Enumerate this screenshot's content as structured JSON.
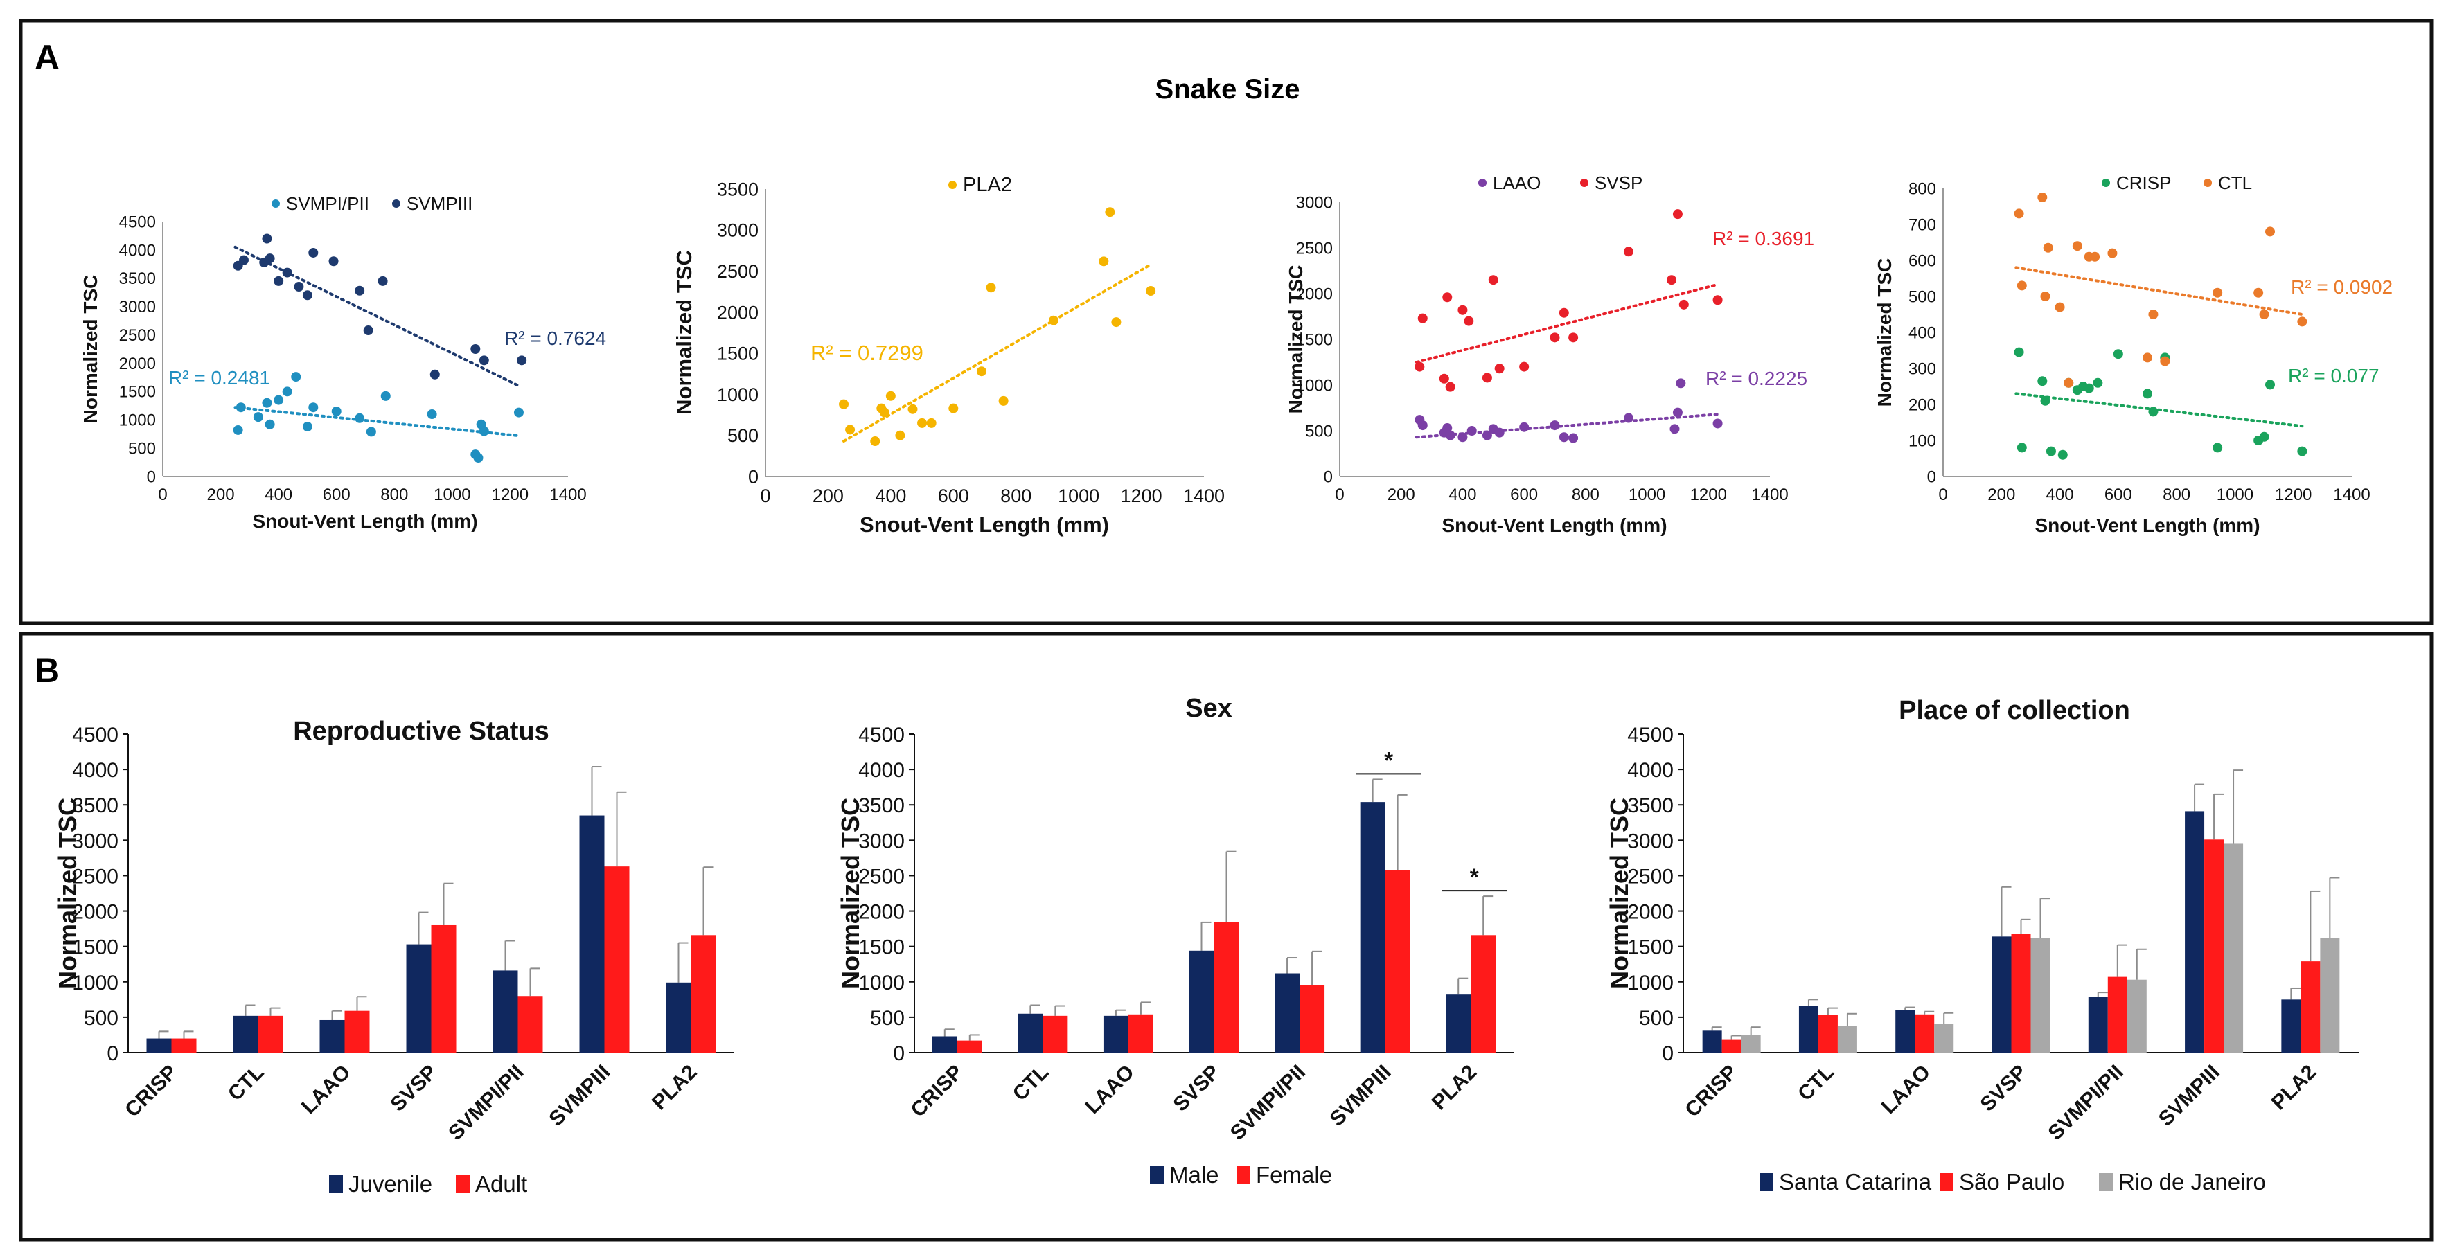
{
  "panel_a": {
    "letter": "A",
    "title": "Snake Size"
  },
  "panel_b": {
    "letter": "B"
  },
  "colors": {
    "svmpi": "#1f8fc0",
    "svmpiii": "#1e3a6e",
    "pla2": "#f5b400",
    "laao": "#7b3fa5",
    "svsp": "#e8202a",
    "crisp": "#1aa35c",
    "ctl": "#ea7a2a",
    "juvenile": "#10285f",
    "adult": "#ff1a1a",
    "male": "#10285f",
    "female": "#ff1a1a",
    "santa_catarina": "#10285f",
    "sao_paulo": "#ff1a1a",
    "rio_de_janeiro": "#a8a8a8",
    "error_bar": "#8c8c8c"
  },
  "chart_data": [
    {
      "id": "scatter1",
      "type": "scatter",
      "xlabel": "Snout-Vent Length (mm)",
      "ylabel": "Normalized TSC",
      "xlim": [
        0,
        1400
      ],
      "ylim": [
        0,
        4500
      ],
      "xticks": [
        "0",
        "200",
        "400",
        "600",
        "800",
        "1000",
        "1200",
        "1400"
      ],
      "yticks": [
        "0",
        "500",
        "1000",
        "1500",
        "2000",
        "2500",
        "3000",
        "3500",
        "4000",
        "4500"
      ],
      "series": [
        {
          "name": "SVMPI/PII",
          "color_key": "svmpi",
          "r2": "R² = 0.2481",
          "trend": [
            [
              250,
              1220
            ],
            [
              1230,
              720
            ]
          ],
          "points": [
            [
              260,
              820
            ],
            [
              270,
              1220
            ],
            [
              330,
              1050
            ],
            [
              360,
              1300
            ],
            [
              370,
              920
            ],
            [
              400,
              1350
            ],
            [
              430,
              1500
            ],
            [
              460,
              1760
            ],
            [
              500,
              880
            ],
            [
              520,
              1220
            ],
            [
              600,
              1150
            ],
            [
              680,
              1030
            ],
            [
              720,
              790
            ],
            [
              770,
              1420
            ],
            [
              930,
              1100
            ],
            [
              1080,
              390
            ],
            [
              1090,
              330
            ],
            [
              1100,
              920
            ],
            [
              1110,
              800
            ],
            [
              1230,
              1130
            ]
          ]
        },
        {
          "name": "SVMPIII",
          "color_key": "svmpiii",
          "r2": "R² = 0.7624",
          "trend": [
            [
              250,
              4050
            ],
            [
              1230,
              1600
            ]
          ],
          "points": [
            [
              260,
              3720
            ],
            [
              280,
              3820
            ],
            [
              350,
              3780
            ],
            [
              360,
              4200
            ],
            [
              370,
              3850
            ],
            [
              400,
              3450
            ],
            [
              430,
              3600
            ],
            [
              470,
              3350
            ],
            [
              500,
              3200
            ],
            [
              520,
              3950
            ],
            [
              590,
              3800
            ],
            [
              680,
              3280
            ],
            [
              710,
              2580
            ],
            [
              760,
              3450
            ],
            [
              940,
              1800
            ],
            [
              1080,
              2250
            ],
            [
              1110,
              2050
            ],
            [
              1240,
              2050
            ]
          ]
        }
      ]
    },
    {
      "id": "scatter2",
      "type": "scatter",
      "xlabel": "Snout-Vent Length (mm)",
      "ylabel": "Normalized TSC",
      "xlim": [
        0,
        1400
      ],
      "ylim": [
        0,
        3500
      ],
      "xticks": [
        "0",
        "200",
        "400",
        "600",
        "800",
        "1000",
        "1200",
        "1400"
      ],
      "yticks": [
        "0",
        "500",
        "1000",
        "1500",
        "2000",
        "2500",
        "3000",
        "3500"
      ],
      "series": [
        {
          "name": "PLA2",
          "color_key": "pla2",
          "r2": "R² = 0.7299",
          "trend": [
            [
              250,
              430
            ],
            [
              1230,
              2580
            ]
          ],
          "points": [
            [
              250,
              880
            ],
            [
              270,
              570
            ],
            [
              350,
              430
            ],
            [
              370,
              830
            ],
            [
              380,
              780
            ],
            [
              400,
              980
            ],
            [
              430,
              500
            ],
            [
              470,
              820
            ],
            [
              500,
              650
            ],
            [
              530,
              650
            ],
            [
              600,
              830
            ],
            [
              690,
              1280
            ],
            [
              720,
              2300
            ],
            [
              760,
              920
            ],
            [
              920,
              1900
            ],
            [
              1080,
              2620
            ],
            [
              1100,
              3220
            ],
            [
              1120,
              1880
            ],
            [
              1230,
              2260
            ]
          ]
        }
      ]
    },
    {
      "id": "scatter3",
      "type": "scatter",
      "xlabel": "Snout-Vent Length (mm)",
      "ylabel": "Normalized TSC",
      "xlim": [
        0,
        1400
      ],
      "ylim": [
        0,
        3000
      ],
      "xticks": [
        "0",
        "200",
        "400",
        "600",
        "800",
        "1000",
        "1200",
        "1400"
      ],
      "yticks": [
        "0",
        "500",
        "1000",
        "1500",
        "2000",
        "2500",
        "3000"
      ],
      "series": [
        {
          "name": "LAAO",
          "color_key": "laao",
          "r2": "R² = 0.2225",
          "trend": [
            [
              250,
              430
            ],
            [
              1230,
              680
            ]
          ],
          "points": [
            [
              260,
              620
            ],
            [
              270,
              560
            ],
            [
              340,
              480
            ],
            [
              350,
              530
            ],
            [
              360,
              450
            ],
            [
              400,
              430
            ],
            [
              430,
              500
            ],
            [
              480,
              450
            ],
            [
              500,
              520
            ],
            [
              520,
              480
            ],
            [
              600,
              540
            ],
            [
              700,
              560
            ],
            [
              730,
              430
            ],
            [
              760,
              420
            ],
            [
              940,
              640
            ],
            [
              1090,
              520
            ],
            [
              1100,
              700
            ],
            [
              1110,
              1020
            ],
            [
              1230,
              580
            ]
          ]
        },
        {
          "name": "SVSP",
          "color_key": "svsp",
          "r2": "R² = 0.3691",
          "trend": [
            [
              250,
              1250
            ],
            [
              1230,
              2100
            ]
          ],
          "points": [
            [
              260,
              1200
            ],
            [
              270,
              1730
            ],
            [
              340,
              1070
            ],
            [
              350,
              1960
            ],
            [
              360,
              980
            ],
            [
              400,
              1820
            ],
            [
              420,
              1700
            ],
            [
              480,
              1080
            ],
            [
              500,
              2150
            ],
            [
              520,
              1180
            ],
            [
              600,
              1200
            ],
            [
              700,
              1520
            ],
            [
              730,
              1790
            ],
            [
              760,
              1520
            ],
            [
              940,
              2460
            ],
            [
              1080,
              2150
            ],
            [
              1100,
              2870
            ],
            [
              1120,
              1880
            ],
            [
              1230,
              1930
            ]
          ]
        }
      ]
    },
    {
      "id": "scatter4",
      "type": "scatter",
      "xlabel": "Snout-Vent Length (mm)",
      "ylabel": "Normalized TSC",
      "xlim": [
        0,
        1400
      ],
      "ylim": [
        0,
        800
      ],
      "xticks": [
        "0",
        "200",
        "400",
        "600",
        "800",
        "1000",
        "1200",
        "1400"
      ],
      "yticks": [
        "0",
        "100",
        "200",
        "300",
        "400",
        "500",
        "600",
        "700",
        "800"
      ],
      "series": [
        {
          "name": "CRISP",
          "color_key": "crisp",
          "r2": "R² = 0.077",
          "trend": [
            [
              250,
              230
            ],
            [
              1230,
              140
            ]
          ],
          "points": [
            [
              260,
              345
            ],
            [
              270,
              80
            ],
            [
              340,
              265
            ],
            [
              350,
              210
            ],
            [
              370,
              70
            ],
            [
              410,
              60
            ],
            [
              430,
              260
            ],
            [
              460,
              240
            ],
            [
              480,
              250
            ],
            [
              500,
              245
            ],
            [
              530,
              260
            ],
            [
              600,
              340
            ],
            [
              700,
              230
            ],
            [
              720,
              180
            ],
            [
              760,
              330
            ],
            [
              940,
              80
            ],
            [
              1080,
              100
            ],
            [
              1100,
              110
            ],
            [
              1120,
              255
            ],
            [
              1230,
              70
            ]
          ]
        },
        {
          "name": "CTL",
          "color_key": "ctl",
          "r2": "R² = 0.0902",
          "trend": [
            [
              250,
              580
            ],
            [
              1230,
              450
            ]
          ],
          "points": [
            [
              260,
              730
            ],
            [
              270,
              530
            ],
            [
              340,
              775
            ],
            [
              350,
              500
            ],
            [
              360,
              635
            ],
            [
              400,
              470
            ],
            [
              430,
              260
            ],
            [
              460,
              640
            ],
            [
              500,
              610
            ],
            [
              520,
              610
            ],
            [
              580,
              620
            ],
            [
              700,
              330
            ],
            [
              720,
              450
            ],
            [
              760,
              320
            ],
            [
              940,
              510
            ],
            [
              1080,
              510
            ],
            [
              1100,
              450
            ],
            [
              1120,
              680
            ],
            [
              1230,
              430
            ]
          ]
        }
      ]
    },
    {
      "id": "bar1",
      "type": "bar",
      "title": "Reproductive Status",
      "ylabel": "Normalized TSC",
      "ylim": [
        0,
        4500
      ],
      "yticks": [
        "0",
        "500",
        "1000",
        "1500",
        "2000",
        "2500",
        "3000",
        "3500",
        "4000",
        "4500"
      ],
      "categories": [
        "CRISP",
        "CTL",
        "LAAO",
        "SVSP",
        "SVMPI/PII",
        "SVMPIII",
        "PLA2"
      ],
      "series": [
        {
          "name": "Juvenile",
          "color_key": "juvenile",
          "values": [
            200,
            520,
            460,
            1530,
            1160,
            3350,
            990
          ],
          "errors": [
            100,
            150,
            130,
            450,
            420,
            690,
            560
          ]
        },
        {
          "name": "Adult",
          "color_key": "adult",
          "values": [
            200,
            520,
            590,
            1810,
            800,
            2630,
            1660
          ],
          "errors": [
            100,
            110,
            200,
            580,
            390,
            1050,
            960
          ]
        }
      ],
      "sig": []
    },
    {
      "id": "bar2",
      "type": "bar",
      "title": "Sex",
      "ylabel": "Normalized TSC",
      "ylim": [
        0,
        4500
      ],
      "yticks": [
        "0",
        "500",
        "1000",
        "1500",
        "2000",
        "2500",
        "3000",
        "3500",
        "4000",
        "4500"
      ],
      "categories": [
        "CRISP",
        "CTL",
        "LAAO",
        "SVSP",
        "SVMPI/PII",
        "SVMPIII",
        "PLA2"
      ],
      "series": [
        {
          "name": "Male",
          "color_key": "male",
          "values": [
            230,
            550,
            520,
            1440,
            1120,
            3540,
            820
          ],
          "errors": [
            100,
            120,
            80,
            400,
            220,
            320,
            230
          ]
        },
        {
          "name": "Female",
          "color_key": "female",
          "values": [
            170,
            520,
            540,
            1840,
            950,
            2580,
            1660
          ],
          "errors": [
            80,
            140,
            170,
            1000,
            480,
            1060,
            550
          ]
        }
      ],
      "sig": [
        {
          "category_index": 5,
          "label": "*"
        },
        {
          "category_index": 6,
          "label": "*"
        }
      ]
    },
    {
      "id": "bar3",
      "type": "bar",
      "title": "Place of collection",
      "ylabel": "Normalized TSC",
      "ylim": [
        0,
        4500
      ],
      "yticks": [
        "0",
        "500",
        "1000",
        "1500",
        "2000",
        "2500",
        "3000",
        "3500",
        "4000",
        "4500"
      ],
      "categories": [
        "CRISP",
        "CTL",
        "LAAO",
        "SVSP",
        "SVMPI/PII",
        "SVMPIII",
        "PLA2"
      ],
      "series": [
        {
          "name": "Santa Catarina",
          "color_key": "santa_catarina",
          "values": [
            310,
            660,
            600,
            1640,
            790,
            3410,
            750
          ],
          "errors": [
            50,
            90,
            40,
            700,
            60,
            380,
            160
          ]
        },
        {
          "name": "São Paulo",
          "color_key": "sao_paulo",
          "values": [
            180,
            530,
            540,
            1680,
            1070,
            3010,
            1290
          ],
          "errors": [
            60,
            100,
            40,
            200,
            450,
            640,
            990
          ]
        },
        {
          "name": "Rio de Janeiro",
          "color_key": "rio_de_janeiro",
          "values": [
            250,
            380,
            410,
            1620,
            1030,
            2950,
            1620
          ],
          "errors": [
            110,
            170,
            150,
            560,
            430,
            1040,
            850
          ]
        }
      ],
      "sig": []
    }
  ]
}
